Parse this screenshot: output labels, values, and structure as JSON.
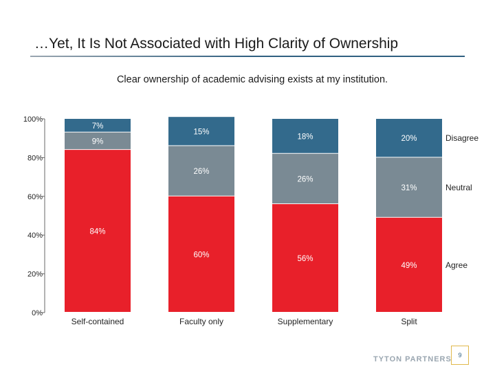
{
  "header": {
    "title": "…Yet, It Is Not Associated with High Clarity of Ownership"
  },
  "footer": {
    "logo_text": "TYTON PARTNERS",
    "page_number": "9"
  },
  "chart_data": {
    "type": "bar",
    "stacked": true,
    "title": "Clear ownership of academic advising exists at my institution.",
    "xlabel": "",
    "ylabel": "",
    "ylim": [
      0,
      100
    ],
    "y_ticks": [
      "0%",
      "20%",
      "40%",
      "60%",
      "80%",
      "100%"
    ],
    "grid": false,
    "legend": "right, labels beside last bar",
    "categories": [
      "Self-contained",
      "Faculty only",
      "Supplementary",
      "Split"
    ],
    "series": [
      {
        "name": "Agree",
        "color": "#e8202a",
        "values": [
          84,
          60,
          56,
          49
        ],
        "labels": [
          "84%",
          "60%",
          "56%",
          "49%"
        ]
      },
      {
        "name": "Neutral",
        "color": "#7a8a94",
        "values": [
          9,
          26,
          26,
          31
        ],
        "labels": [
          "9%",
          "26%",
          "26%",
          "31%"
        ]
      },
      {
        "name": "Disagree",
        "color": "#336a8c",
        "values": [
          7,
          15,
          18,
          20
        ],
        "labels": [
          "7%",
          "15%",
          "18%",
          "20%"
        ]
      }
    ]
  }
}
